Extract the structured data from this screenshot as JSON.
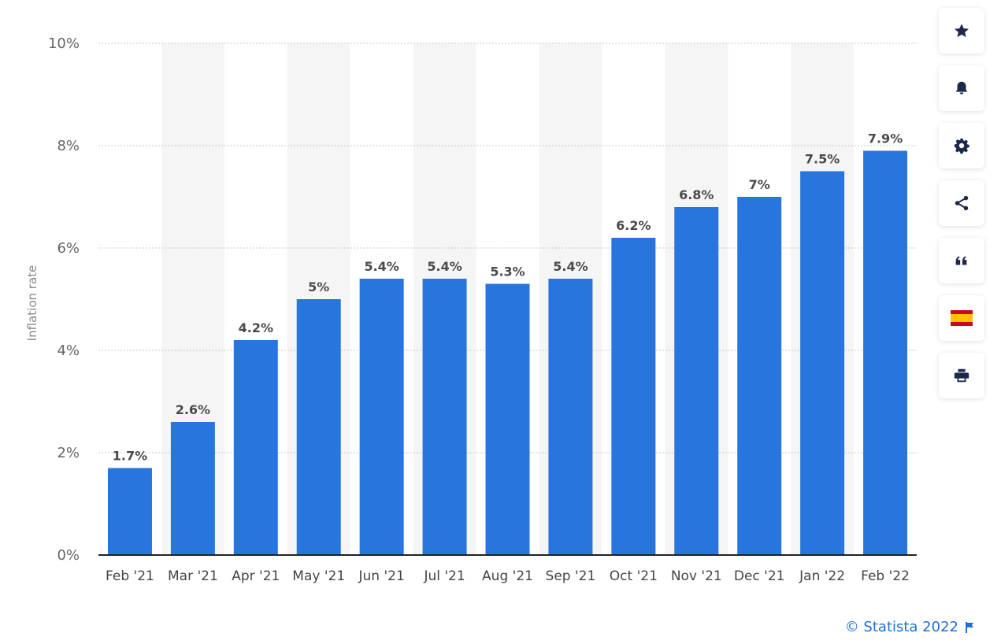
{
  "chart_data": {
    "type": "bar",
    "title": "",
    "xlabel": "",
    "ylabel": "Inflation rate",
    "ylim": [
      0,
      10
    ],
    "yticks": [
      "0%",
      "2%",
      "4%",
      "6%",
      "8%",
      "10%"
    ],
    "ytick_values": [
      0,
      2,
      4,
      6,
      8,
      10
    ],
    "grid": true,
    "categories": [
      "Feb '21",
      "Mar '21",
      "Apr '21",
      "May '21",
      "Jun '21",
      "Jul '21",
      "Aug '21",
      "Sep '21",
      "Oct '21",
      "Nov '21",
      "Dec '21",
      "Jan '22",
      "Feb '22"
    ],
    "values": [
      1.7,
      2.6,
      4.2,
      5,
      5.4,
      5.4,
      5.3,
      5.4,
      6.2,
      6.8,
      7,
      7.5,
      7.9
    ],
    "value_labels": [
      "1.7%",
      "2.6%",
      "4.2%",
      "5%",
      "5.4%",
      "5.4%",
      "5.3%",
      "5.4%",
      "6.2%",
      "6.8%",
      "7%",
      "7.5%",
      "7.9%"
    ],
    "bar_color": "#2876dd"
  },
  "toolbar": {
    "buttons": [
      {
        "name": "favorite-button",
        "icon": "star-icon"
      },
      {
        "name": "notification-button",
        "icon": "bell-icon"
      },
      {
        "name": "settings-button",
        "icon": "gear-icon"
      },
      {
        "name": "share-button",
        "icon": "share-icon"
      },
      {
        "name": "cite-button",
        "icon": "quote-icon"
      },
      {
        "name": "language-button",
        "icon": "spain-flag-icon"
      },
      {
        "name": "print-button",
        "icon": "print-icon"
      }
    ],
    "icon_color": "#1b2a4a"
  },
  "credit": {
    "text": "© Statista 2022",
    "icon": "flag-icon",
    "color": "#1e6fcf"
  }
}
